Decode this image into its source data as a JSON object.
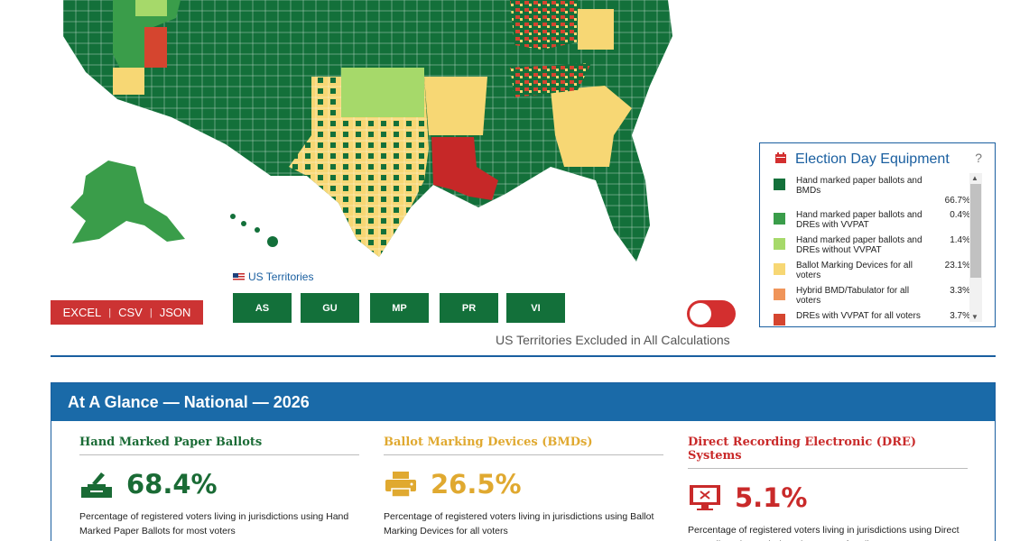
{
  "legend": {
    "title": "Election Day Equipment",
    "help": "?",
    "items": [
      {
        "label": "Hand marked paper ballots and BMDs",
        "value": "66.7%",
        "color": "#13703a"
      },
      {
        "label": "Hand marked paper ballots and DREs with VVPAT",
        "value": "0.4%",
        "color": "#3a9d4a"
      },
      {
        "label": "Hand marked paper ballots and DREs without VVPAT",
        "value": "1.4%",
        "color": "#a6d96a"
      },
      {
        "label": "Ballot Marking Devices for all voters",
        "value": "23.1%",
        "color": "#f7d774"
      },
      {
        "label": "Hybrid BMD/Tabulator for all voters",
        "value": "3.3%",
        "color": "#f0955a"
      },
      {
        "label": "DREs with VVPAT for all voters",
        "value": "3.7%",
        "color": "#d5452f"
      }
    ]
  },
  "territories": {
    "label": "US Territories",
    "buttons": [
      "AS",
      "GU",
      "MP",
      "PR",
      "VI"
    ],
    "excluded_caption": "US Territories Excluded in All Calculations"
  },
  "export": {
    "excel": "EXCEL",
    "csv": "CSV",
    "json": "JSON",
    "sep": "|"
  },
  "glance": {
    "title": "At A Glance — National — 2026",
    "columns": [
      {
        "title": "Hand Marked Paper Ballots",
        "value": "68.4%",
        "color": "#1a6b35",
        "icon": "ballot-box-icon",
        "desc": "Percentage of registered voters living in jurisdictions using Hand Marked Paper Ballots for most voters"
      },
      {
        "title": "Ballot Marking Devices (BMDs)",
        "value": "26.5%",
        "color": "#e0a930",
        "icon": "printer-icon",
        "desc": "Percentage of registered voters living in jurisdictions using Ballot Marking Devices for all voters"
      },
      {
        "title": "Direct Recording Electronic (DRE) Systems",
        "value": "5.1%",
        "color": "#c92a2a",
        "icon": "monitor-x-icon",
        "desc": "Percentage of registered voters living in jurisdictions using Direct Recording Electronic (DRE) Systems for all voters"
      }
    ]
  }
}
